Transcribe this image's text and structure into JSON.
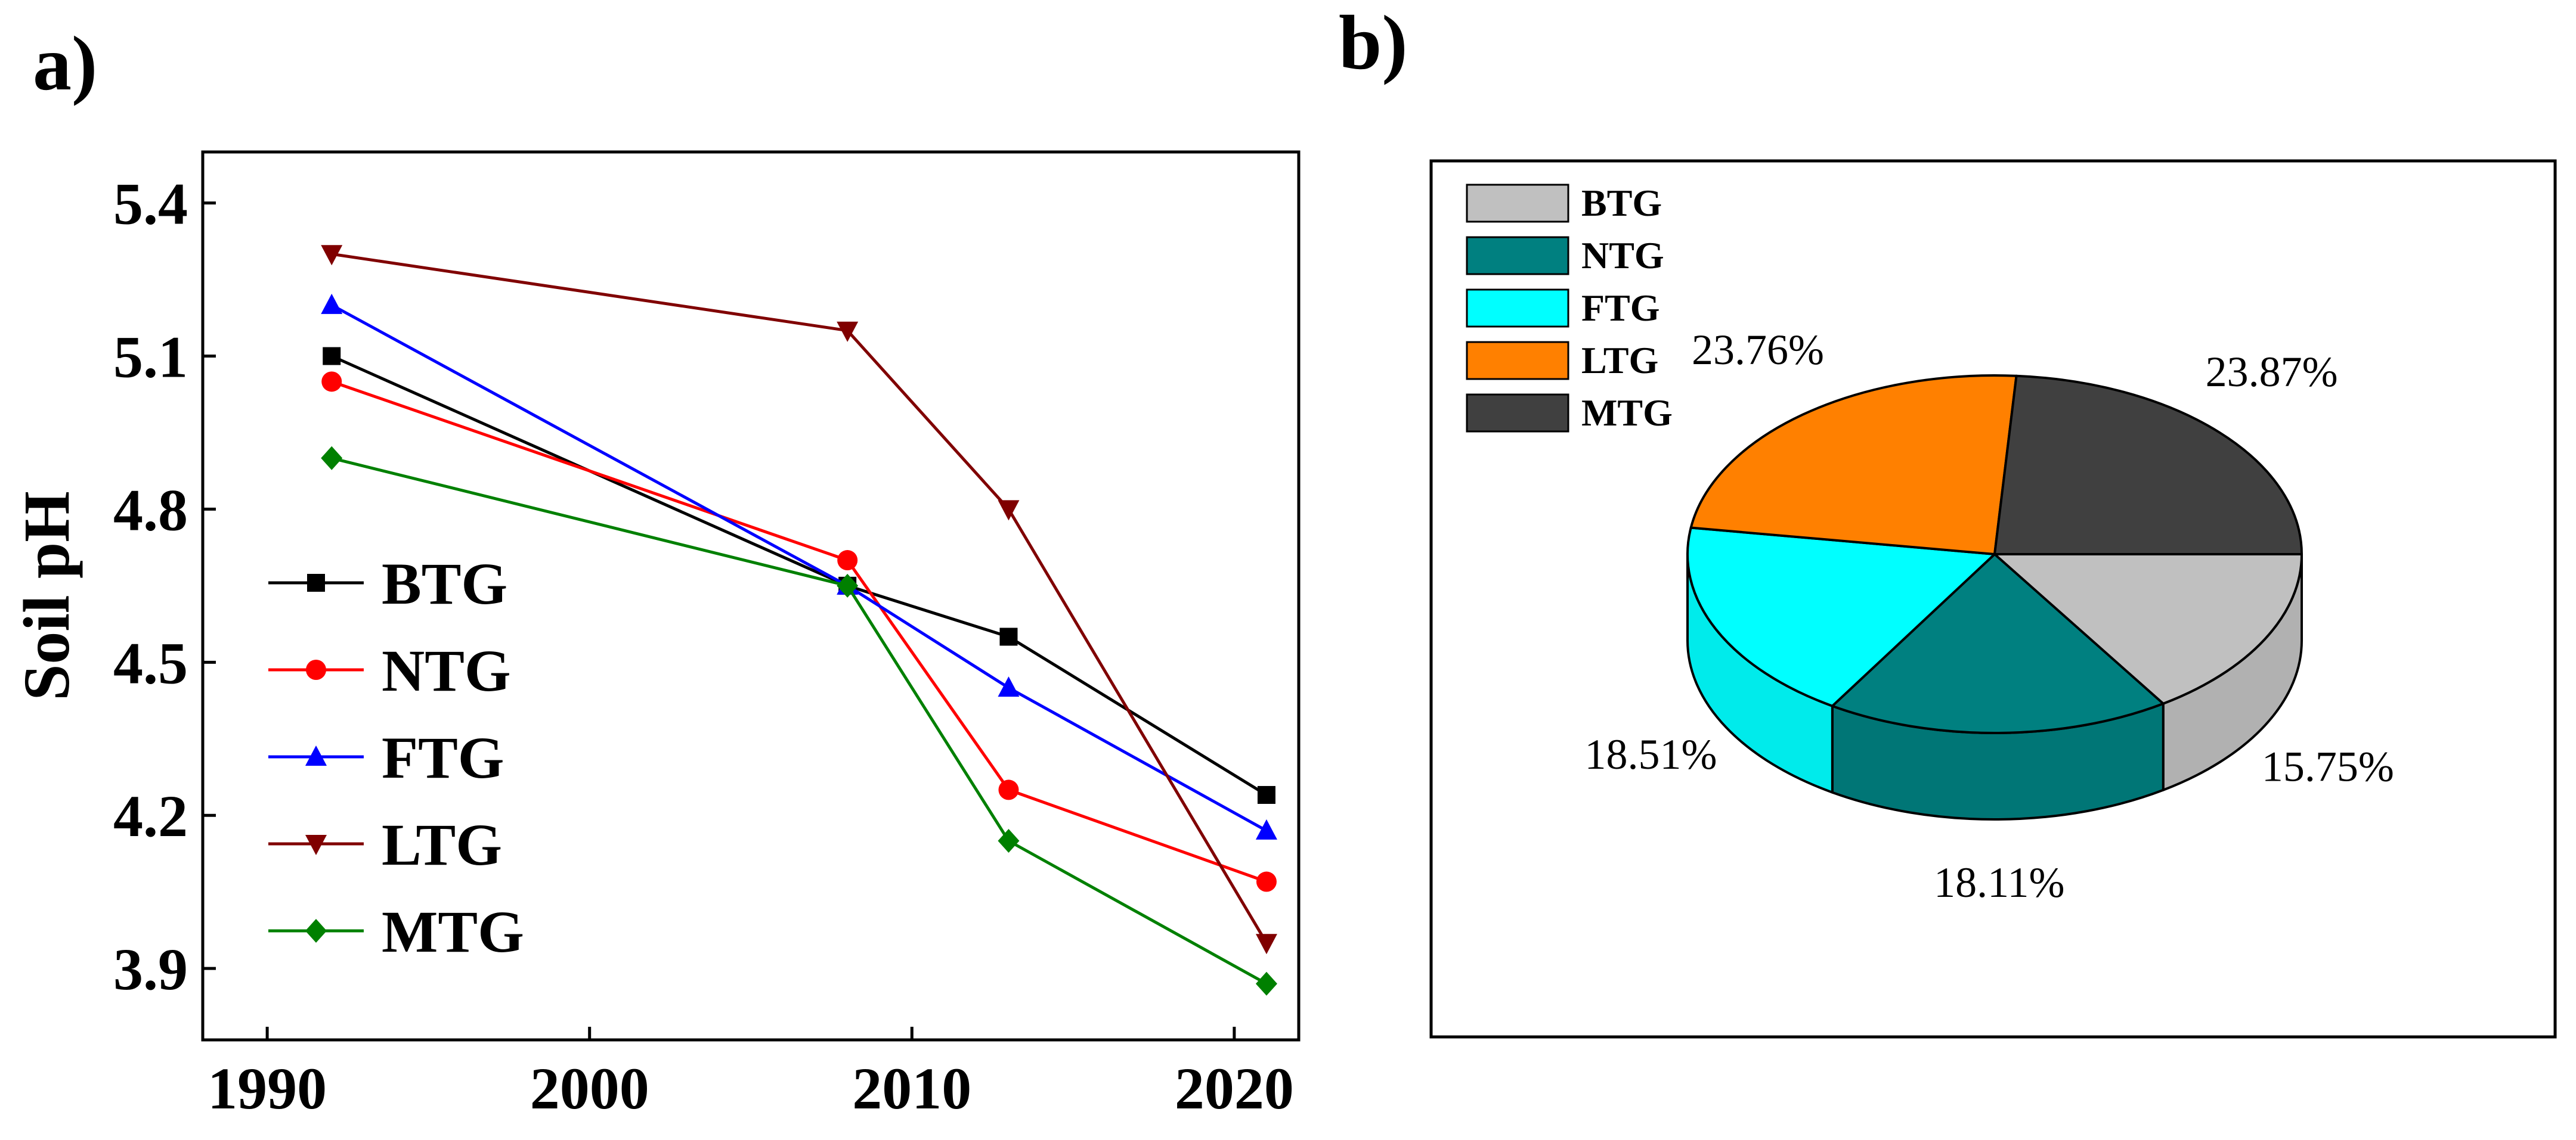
{
  "panel_labels": {
    "a": "a)",
    "b": "b)"
  },
  "chart_data": [
    {
      "type": "line",
      "panel": "a)",
      "title": "",
      "xlabel": "",
      "ylabel": "Soil pH",
      "xlim": [
        1988,
        2022
      ],
      "ylim": [
        3.76,
        5.5
      ],
      "xticks": [
        1990,
        2000,
        2010,
        2020
      ],
      "xtick_labels": [
        "1990",
        "2000",
        "2010",
        "2020"
      ],
      "yticks": [
        3.9,
        4.2,
        4.5,
        4.8,
        5.1,
        5.4
      ],
      "ytick_labels": [
        "3.9",
        "4.2",
        "4.5",
        "4.8",
        "5.1",
        "5.4"
      ],
      "x": [
        1992,
        2008,
        2013,
        2021
      ],
      "legend_position": "lower-left",
      "grid": false,
      "series": [
        {
          "name": "BTG",
          "color": "#000000",
          "marker": "square",
          "values": [
            5.1,
            4.65,
            4.55,
            4.24
          ]
        },
        {
          "name": "NTG",
          "color": "#ff0000",
          "marker": "circle",
          "values": [
            5.05,
            4.7,
            4.25,
            4.07
          ]
        },
        {
          "name": "FTG",
          "color": "#0000ff",
          "marker": "triangle-up",
          "values": [
            5.2,
            4.65,
            4.45,
            4.17
          ]
        },
        {
          "name": "LTG",
          "color": "#800000",
          "marker": "triangle-down",
          "values": [
            5.3,
            5.15,
            4.8,
            3.95
          ]
        },
        {
          "name": "MTG",
          "color": "#008000",
          "marker": "diamond",
          "values": [
            4.9,
            4.65,
            4.15,
            3.87
          ]
        }
      ]
    },
    {
      "type": "pie",
      "panel": "b)",
      "style": "3d",
      "title": "",
      "legend_position": "top-left",
      "slices": [
        {
          "name": "BTG",
          "value": 15.75,
          "label": "15.75%",
          "color": "#c0c0c0"
        },
        {
          "name": "NTG",
          "value": 18.11,
          "label": "18.11%",
          "color": "#008080"
        },
        {
          "name": "FTG",
          "value": 18.51,
          "label": "18.51%",
          "color": "#00ffff"
        },
        {
          "name": "LTG",
          "value": 23.76,
          "label": "23.76%",
          "color": "#ff8000"
        },
        {
          "name": "MTG",
          "value": 23.87,
          "label": "23.87%",
          "color": "#404040"
        }
      ]
    }
  ]
}
